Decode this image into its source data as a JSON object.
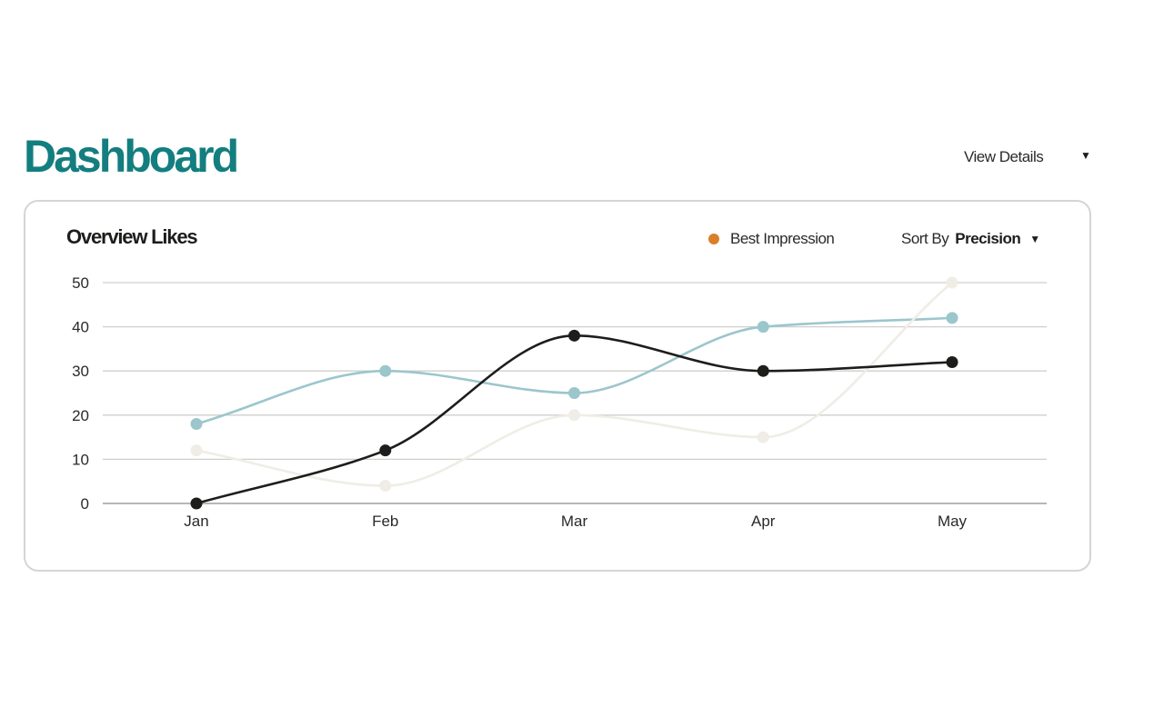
{
  "header": {
    "title": "Dashboard",
    "view_details_label": "View Details",
    "caret_icon": "caret-down-icon"
  },
  "card": {
    "title": "Overview Likes",
    "legend": {
      "label": "Best Impression",
      "color": "#d97f2c"
    },
    "sort": {
      "label": "Sort By",
      "value": "Precision"
    }
  },
  "chart_data": {
    "type": "line",
    "title": "Overview Likes",
    "categories": [
      "Jan",
      "Feb",
      "Mar",
      "Apr",
      "May"
    ],
    "series": [
      {
        "values": [
          18,
          30,
          25,
          40,
          42
        ],
        "color": "#9bc6cc"
      },
      {
        "values": [
          12,
          4,
          20,
          15,
          50
        ],
        "color": "#efede5"
      },
      {
        "values": [
          0,
          12,
          38,
          30,
          32
        ],
        "color": "#1d1d1b"
      }
    ],
    "yticks": [
      0,
      10,
      20,
      30,
      40,
      50
    ],
    "ylim": [
      0,
      50
    ],
    "grid": true,
    "smooth": true,
    "accent": "#137e7f"
  }
}
